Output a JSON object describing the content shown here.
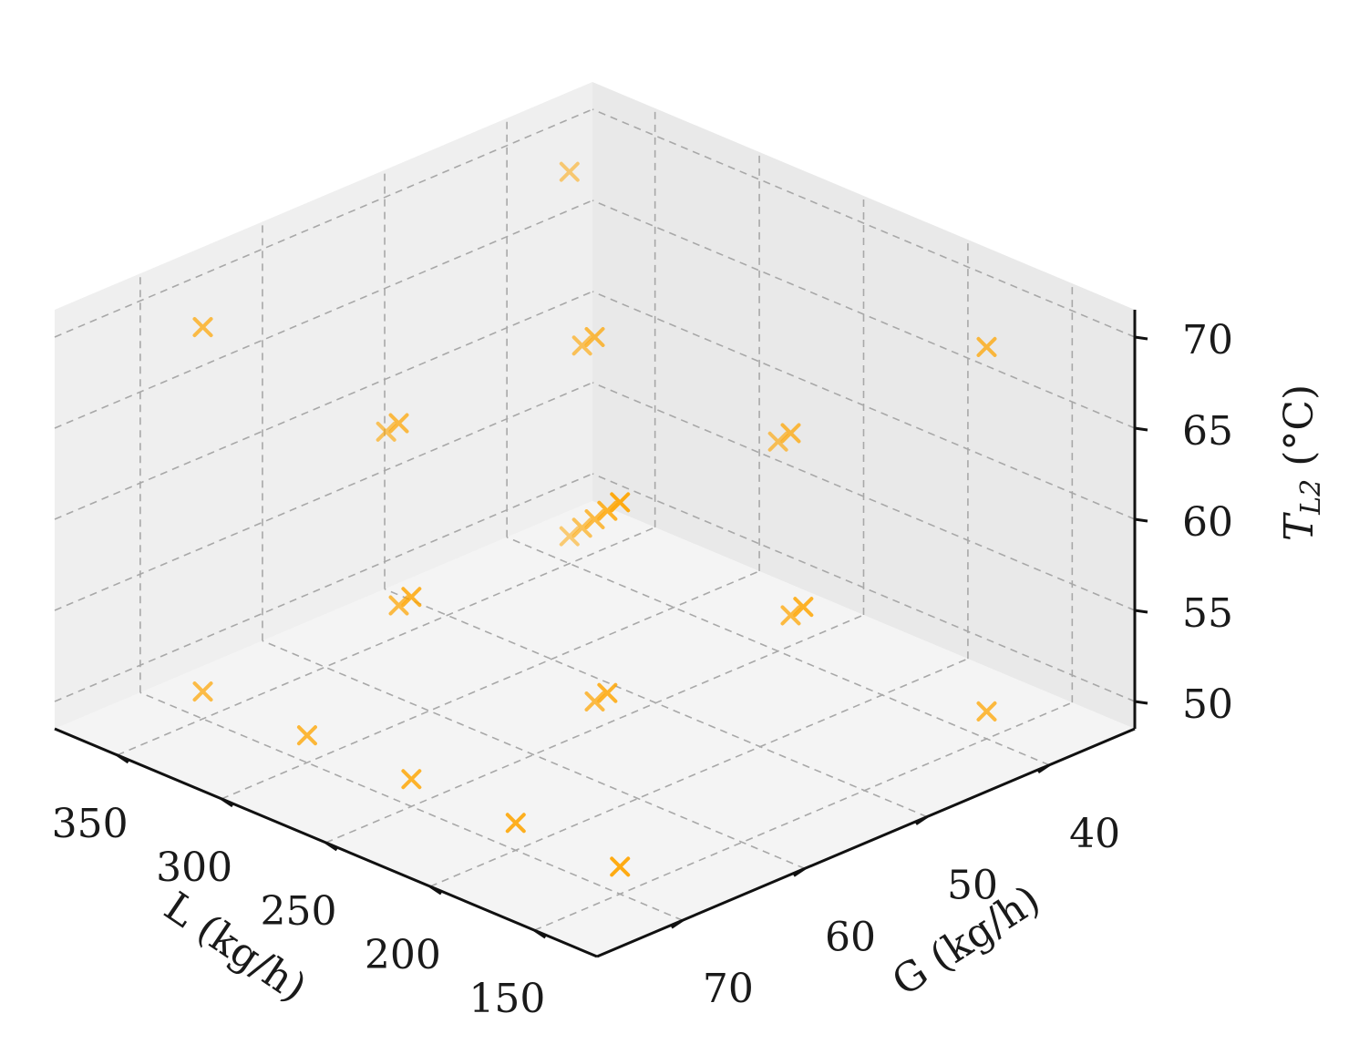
{
  "chart_data": {
    "type": "scatter",
    "projection": "3d",
    "marker": "x",
    "marker_color": "#FFA500",
    "grid": true,
    "title": "",
    "axes": {
      "x": {
        "label": "L (kg/h)",
        "lim": [
          120,
          380
        ],
        "ticks": [
          150,
          200,
          250,
          300,
          350
        ]
      },
      "y": {
        "label": "G (kg/h)",
        "lim": [
          33,
          77
        ],
        "ticks": [
          40,
          50,
          60,
          70
        ]
      },
      "z": {
        "label_main": "T",
        "label_sub": "L2",
        "label_unit": " (°C)",
        "lim": [
          48.5,
          71.5
        ],
        "ticks": [
          50,
          55,
          60,
          65,
          70
        ]
      }
    },
    "points": [
      {
        "x": 150,
        "y": 70,
        "z": 50
      },
      {
        "x": 150,
        "y": 40,
        "z": 50
      },
      {
        "x": 350,
        "y": 70,
        "z": 50
      },
      {
        "x": 350,
        "y": 40,
        "z": 50
      },
      {
        "x": 150,
        "y": 70,
        "z": 70
      },
      {
        "x": 150,
        "y": 40,
        "z": 70
      },
      {
        "x": 350,
        "y": 70,
        "z": 70
      },
      {
        "x": 350,
        "y": 40,
        "z": 70
      },
      {
        "x": 150,
        "y": 55,
        "z": 60
      },
      {
        "x": 350,
        "y": 55,
        "z": 60
      },
      {
        "x": 250,
        "y": 70,
        "z": 60
      },
      {
        "x": 250,
        "y": 40,
        "z": 60
      },
      {
        "x": 250,
        "y": 55,
        "z": 50
      },
      {
        "x": 250,
        "y": 55,
        "z": 70
      },
      {
        "x": 250,
        "y": 55,
        "z": 60
      },
      {
        "x": 200,
        "y": 62.5,
        "z": 55
      },
      {
        "x": 300,
        "y": 62.5,
        "z": 55
      },
      {
        "x": 200,
        "y": 47.5,
        "z": 55
      },
      {
        "x": 300,
        "y": 47.5,
        "z": 55
      },
      {
        "x": 200,
        "y": 62.5,
        "z": 65
      },
      {
        "x": 300,
        "y": 62.5,
        "z": 65
      },
      {
        "x": 200,
        "y": 47.5,
        "z": 65
      },
      {
        "x": 300,
        "y": 47.5,
        "z": 65
      },
      {
        "x": 200,
        "y": 70,
        "z": 50
      },
      {
        "x": 300,
        "y": 70,
        "z": 50
      },
      {
        "x": 250,
        "y": 70,
        "z": 50
      }
    ]
  }
}
